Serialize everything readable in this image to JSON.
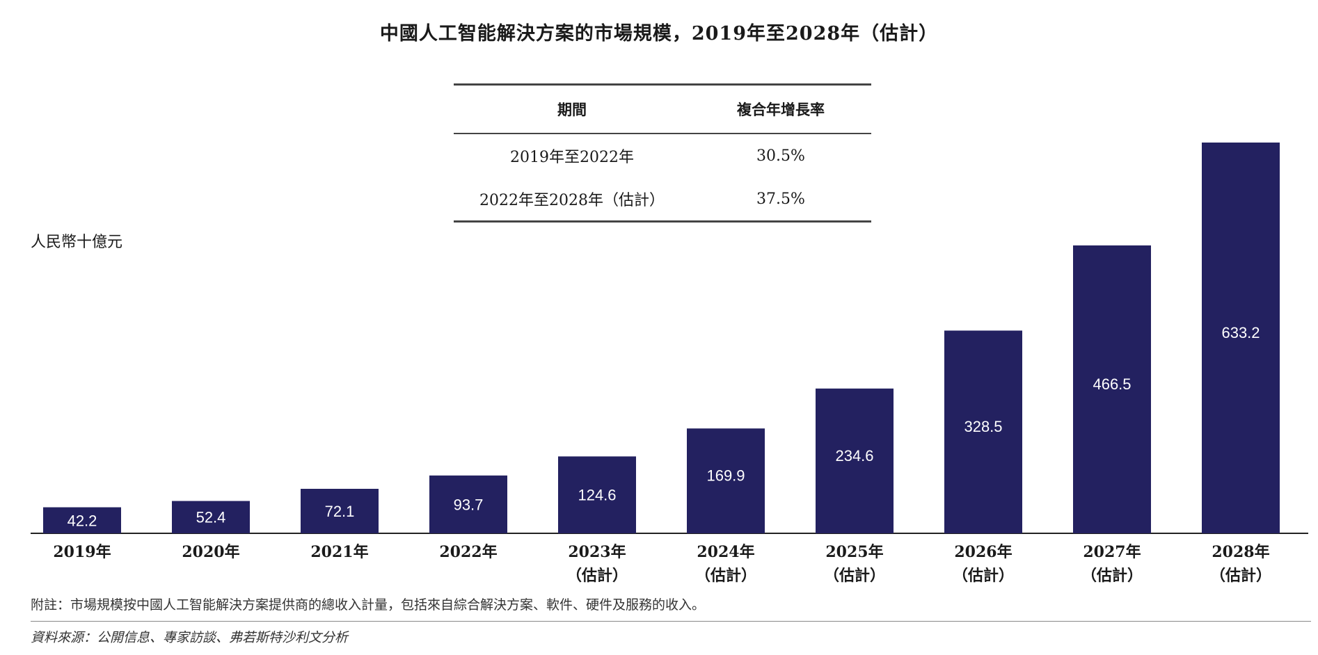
{
  "chart_data": {
    "type": "bar",
    "title": "中國人工智能解決方案的市場規模，2019年至2028年（估計）",
    "ylabel": "人民幣十億元",
    "xlabel": "",
    "ylim": [
      0,
      633.2
    ],
    "grid": false,
    "bar_color": "#232160",
    "label_color": "#ffffff",
    "categories": [
      "2019年",
      "2020年",
      "2021年",
      "2022年",
      "2023年",
      "2024年",
      "2025年",
      "2026年",
      "2027年",
      "2028年"
    ],
    "category_notes": [
      "",
      "",
      "",
      "",
      "（估計）",
      "（估計）",
      "（估計）",
      "（估計）",
      "（估計）",
      "（估計）"
    ],
    "values": [
      42.2,
      52.4,
      72.1,
      93.7,
      124.6,
      169.9,
      234.6,
      328.5,
      466.5,
      633.2
    ],
    "value_labels": [
      "42.2",
      "52.4",
      "72.1",
      "93.7",
      "124.6",
      "169.9",
      "234.6",
      "328.5",
      "466.5",
      "633.2"
    ]
  },
  "cagr_table": {
    "headers": [
      "期間",
      "複合年增長率"
    ],
    "rows": [
      {
        "period": "2019年至2022年",
        "rate": "30.5%"
      },
      {
        "period": "2022年至2028年（估計）",
        "rate": "37.5%"
      }
    ]
  },
  "footnote": "附註：市場規模按中國人工智能解決方案提供商的總收入計量，包括來自綜合解決方案、軟件、硬件及服務的收入。",
  "source": "資料來源：公開信息、專家訪談、弗若斯特沙利文分析"
}
